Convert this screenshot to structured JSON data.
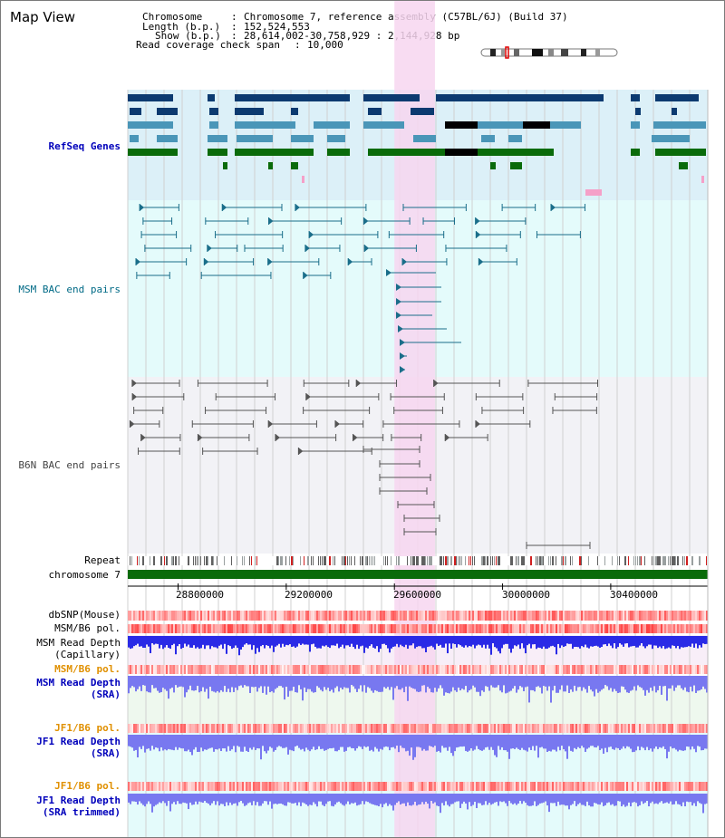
{
  "view": {
    "title": "Map View",
    "chromosome_key": "Chromosome",
    "chromosome_value": "Chromosome 7, reference assembly (C57BL/6J) (Build 37)",
    "length_key": "Length (b.p.)",
    "length_value": "152,524,553",
    "show_key": "Show (b.p.)",
    "show_value": "28,614,002-30,758,929 : 2,144,928 bp",
    "span_key": "Read coverage check span",
    "span_value": "10,000"
  },
  "range": {
    "start": 28614002,
    "end": 30758929
  },
  "highlight": {
    "start": 29600000,
    "end": 29750000
  },
  "tracks": {
    "refseq": "RefSeq Genes",
    "msm_bac": "MSM BAC end pairs",
    "b6n_bac": "B6N BAC end pairs",
    "repeat": "Repeat",
    "chromosome": "chromosome 7",
    "dbsnp": "dbSNP(Mouse)",
    "msm_pol1": "MSM/B6 pol.",
    "msm_depth_cap_1": "MSM Read Depth",
    "msm_depth_cap_2": "(Capillary)",
    "msm_pol2": "MSM/B6 pol.",
    "msm_depth_sra_1": "MSM Read Depth",
    "msm_depth_sra_2": "(SRA)",
    "jf1_pol1": "JF1/B6 pol.",
    "jf1_depth_sra_1": "JF1 Read Depth",
    "jf1_depth_sra_2": "(SRA)",
    "jf1_pol2": "JF1/B6 pol.",
    "jf1_depth_trim_1": "JF1 Read Depth",
    "jf1_depth_trim_2": "(SRA trimmed)"
  },
  "axis": {
    "ticks": [
      {
        "value": 28800000,
        "label": "28800000"
      },
      {
        "value": 29200000,
        "label": "29200000"
      },
      {
        "value": 29600000,
        "label": "29600000"
      },
      {
        "value": 30000000,
        "label": "30000000"
      },
      {
        "value": 30400000,
        "label": "30400000"
      }
    ]
  },
  "colors": {
    "refseq_bg": "#dcf0f8",
    "msm_bg": "#e4fbfb",
    "b6n_bg": "#f2f2f6",
    "highlight": "#f7d6f0",
    "gene_dark": "#0c3a70",
    "gene_light": "#4a96b8",
    "gene_green": "#0a6b0a",
    "msm_pair": "#1a6e8a",
    "b6n_pair": "#555555",
    "chromosome": "#0a6b0a",
    "depth_blue": "#2a2ae6",
    "depth_light": "#7878f0"
  }
}
